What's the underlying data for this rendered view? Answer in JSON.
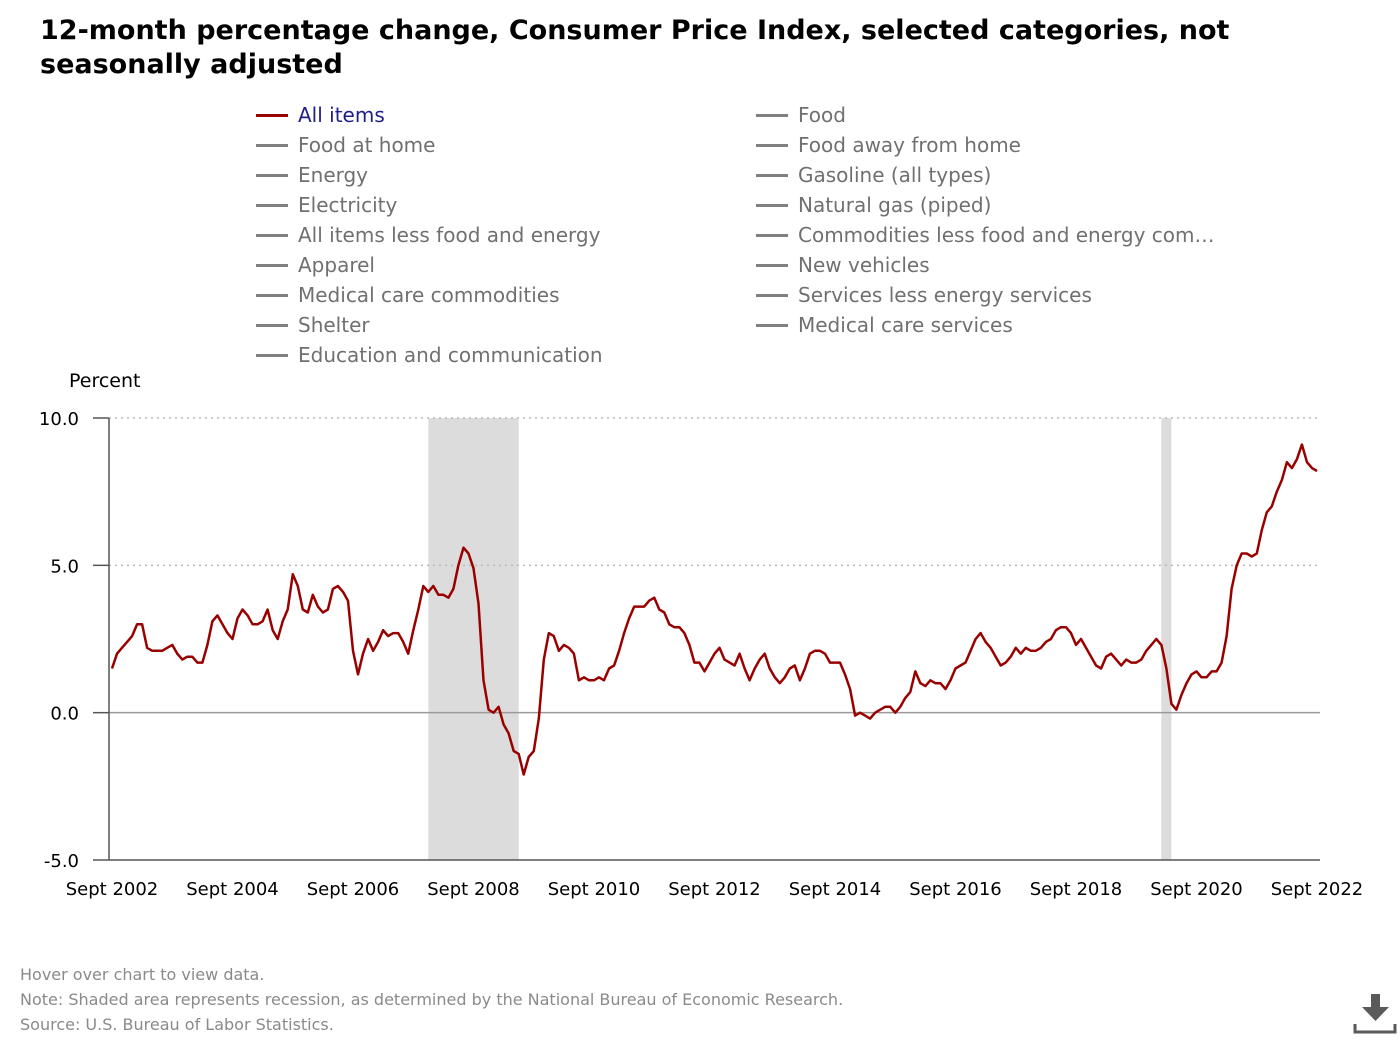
{
  "title": "12-month percentage change, Consumer Price Index, selected categories, not seasonally adjusted",
  "legend": [
    {
      "label": "All items",
      "color": "#990000",
      "active": true
    },
    {
      "label": "Food",
      "color": "#808080",
      "active": false
    },
    {
      "label": "Food at home",
      "color": "#808080",
      "active": false
    },
    {
      "label": "Food away from home",
      "color": "#808080",
      "active": false
    },
    {
      "label": "Energy",
      "color": "#808080",
      "active": false
    },
    {
      "label": "Gasoline (all types)",
      "color": "#808080",
      "active": false
    },
    {
      "label": "Electricity",
      "color": "#808080",
      "active": false
    },
    {
      "label": "Natural gas (piped)",
      "color": "#808080",
      "active": false
    },
    {
      "label": "All items less food and energy",
      "color": "#808080",
      "active": false
    },
    {
      "label": "Commodities less food and energy com…",
      "color": "#808080",
      "active": false
    },
    {
      "label": "Apparel",
      "color": "#808080",
      "active": false
    },
    {
      "label": "New vehicles",
      "color": "#808080",
      "active": false
    },
    {
      "label": "Medical care commodities",
      "color": "#808080",
      "active": false
    },
    {
      "label": "Services less energy services",
      "color": "#808080",
      "active": false
    },
    {
      "label": "Shelter",
      "color": "#808080",
      "active": false
    },
    {
      "label": "Medical care services",
      "color": "#808080",
      "active": false
    },
    {
      "label": "Education and communication",
      "color": "#808080",
      "active": false
    }
  ],
  "footnotes": {
    "hover": "Hover over chart to view data.",
    "note": "Note: Shaded area represents recession, as determined by the National Bureau of Economic Research.",
    "source": "Source: U.S. Bureau of Labor Statistics."
  },
  "icons": {
    "download": "download-icon"
  },
  "chart_data": {
    "type": "line",
    "ylabel": "Percent",
    "xlabel": "",
    "ylim": [
      -5.0,
      10.0
    ],
    "y_ticks": [
      "10.0",
      "5.0",
      "0.0",
      "-5.0"
    ],
    "x_ticks": [
      "Sept 2002",
      "Sept 2004",
      "Sept 2006",
      "Sept 2008",
      "Sept 2010",
      "Sept 2012",
      "Sept 2014",
      "Sept 2016",
      "Sept 2018",
      "Sept 2020",
      "Sept 2022"
    ],
    "x_start": "2002-09",
    "x_end": "2022-09",
    "grid": "dotted horizontal at 5.0 and 10.0; solid line at 0.0",
    "recessions": [
      {
        "start": "2007-12",
        "end": "2009-06"
      },
      {
        "start": "2020-02",
        "end": "2020-04"
      }
    ],
    "series": [
      {
        "name": "All items",
        "color": "#990000",
        "values": [
          1.5,
          2.0,
          2.2,
          2.4,
          2.6,
          3.0,
          3.0,
          2.2,
          2.1,
          2.1,
          2.1,
          2.2,
          2.3,
          2.0,
          1.8,
          1.9,
          1.9,
          1.7,
          1.7,
          2.3,
          3.1,
          3.3,
          3.0,
          2.7,
          2.5,
          3.2,
          3.5,
          3.3,
          3.0,
          3.0,
          3.1,
          3.5,
          2.8,
          2.5,
          3.1,
          3.5,
          4.7,
          4.3,
          3.5,
          3.4,
          4.0,
          3.6,
          3.4,
          3.5,
          4.2,
          4.3,
          4.1,
          3.8,
          2.1,
          1.3,
          2.0,
          2.5,
          2.1,
          2.4,
          2.8,
          2.6,
          2.7,
          2.7,
          2.4,
          2.0,
          2.8,
          3.5,
          4.3,
          4.1,
          4.3,
          4.0,
          4.0,
          3.9,
          4.2,
          5.0,
          5.6,
          5.4,
          4.9,
          3.7,
          1.1,
          0.1,
          0.0,
          0.2,
          -0.4,
          -0.7,
          -1.3,
          -1.4,
          -2.1,
          -1.5,
          -1.3,
          -0.2,
          1.8,
          2.7,
          2.6,
          2.1,
          2.3,
          2.2,
          2.0,
          1.1,
          1.2,
          1.1,
          1.1,
          1.2,
          1.1,
          1.5,
          1.6,
          2.1,
          2.7,
          3.2,
          3.6,
          3.6,
          3.6,
          3.8,
          3.9,
          3.5,
          3.4,
          3.0,
          2.9,
          2.9,
          2.7,
          2.3,
          1.7,
          1.7,
          1.4,
          1.7,
          2.0,
          2.2,
          1.8,
          1.7,
          1.6,
          2.0,
          1.5,
          1.1,
          1.5,
          1.8,
          2.0,
          1.5,
          1.2,
          1.0,
          1.2,
          1.5,
          1.6,
          1.1,
          1.5,
          2.0,
          2.1,
          2.1,
          2.0,
          1.7,
          1.7,
          1.7,
          1.3,
          0.8,
          -0.1,
          0.0,
          -0.1,
          -0.2,
          0.0,
          0.1,
          0.2,
          0.2,
          0.0,
          0.2,
          0.5,
          0.7,
          1.4,
          1.0,
          0.9,
          1.1,
          1.0,
          1.0,
          0.8,
          1.1,
          1.5,
          1.6,
          1.7,
          2.1,
          2.5,
          2.7,
          2.4,
          2.2,
          1.9,
          1.6,
          1.7,
          1.9,
          2.2,
          2.0,
          2.2,
          2.1,
          2.1,
          2.2,
          2.4,
          2.5,
          2.8,
          2.9,
          2.9,
          2.7,
          2.3,
          2.5,
          2.2,
          1.9,
          1.6,
          1.5,
          1.9,
          2.0,
          1.8,
          1.6,
          1.8,
          1.7,
          1.7,
          1.8,
          2.1,
          2.3,
          2.5,
          2.3,
          1.5,
          0.3,
          0.1,
          0.6,
          1.0,
          1.3,
          1.4,
          1.2,
          1.2,
          1.4,
          1.4,
          1.7,
          2.6,
          4.2,
          5.0,
          5.4,
          5.4,
          5.3,
          5.4,
          6.2,
          6.8,
          7.0,
          7.5,
          7.9,
          8.5,
          8.3,
          8.6,
          9.1,
          8.5,
          8.3,
          8.2
        ]
      }
    ]
  }
}
